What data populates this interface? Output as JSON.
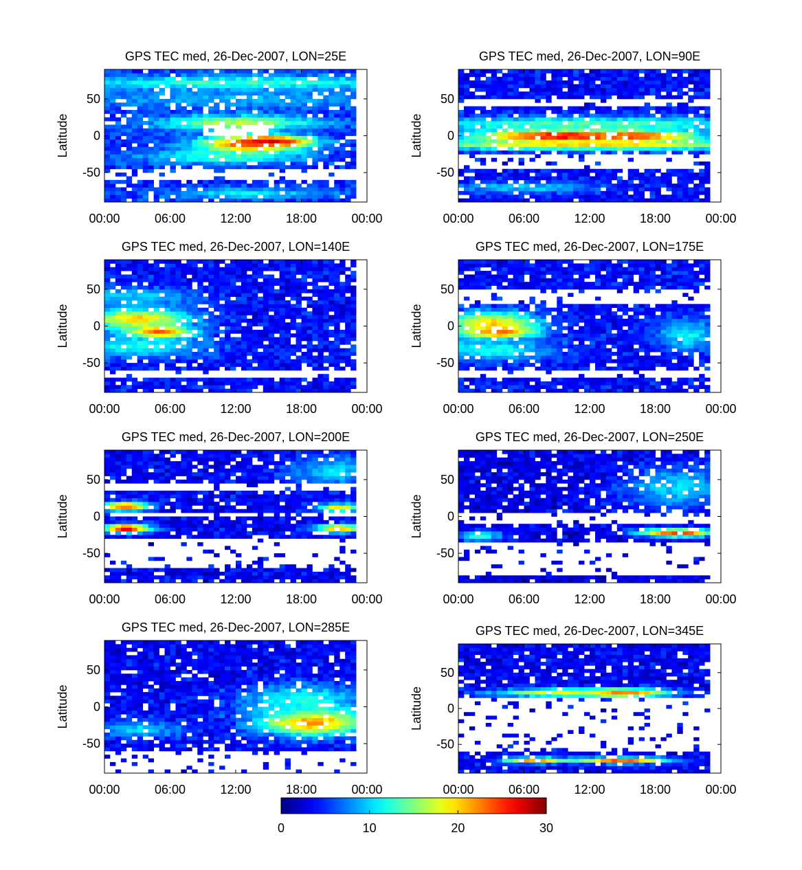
{
  "chart_data": [
    {
      "type": "heatmap",
      "title": "GPS TEC med, 26-Dec-2007, LON=25E",
      "ylabel": "Latitude",
      "xlabel": "",
      "x_ticks": [
        "00:00",
        "06:00",
        "12:00",
        "18:00",
        "00:00"
      ],
      "y_ticks": [
        "50",
        "0",
        "-50"
      ],
      "xlim_hours": [
        0,
        24
      ],
      "ylim": [
        -90,
        90
      ],
      "data_extent_hours": [
        0,
        23
      ],
      "cmap": "jet",
      "clim": [
        0,
        30
      ],
      "features": [
        {
          "hour": 13,
          "lat": -12,
          "w": 6,
          "h": 18,
          "v": 24
        },
        {
          "hour": 15.5,
          "lat": -8,
          "w": 5,
          "h": 10,
          "v": 27
        },
        {
          "hour": 12,
          "lat": 18,
          "w": 10,
          "h": 14,
          "v": 17
        },
        {
          "hour": 12,
          "lat": 72,
          "w": 24,
          "h": 14,
          "v": 13
        },
        {
          "hour": 12,
          "lat": 50,
          "w": 24,
          "h": 18,
          "v": 9
        },
        {
          "hour": 11,
          "lat": -28,
          "w": 10,
          "h": 14,
          "v": 13
        },
        {
          "hour": 13,
          "lat": -78,
          "w": 10,
          "h": 10,
          "v": 11
        }
      ],
      "base": 5,
      "gaps": [
        {
          "h0": 0,
          "h1": 23,
          "l0": -62,
          "l1": -46
        },
        {
          "h0": 9,
          "h1": 15,
          "l0": 0,
          "l1": 14
        }
      ]
    },
    {
      "type": "heatmap",
      "title": "GPS TEC med, 26-Dec-2007, LON=90E",
      "ylabel": "Latitude",
      "xlabel": "",
      "x_ticks": [
        "00:00",
        "06:00",
        "12:00",
        "18:00",
        "00:00"
      ],
      "y_ticks": [
        "50",
        "0",
        "-50"
      ],
      "xlim_hours": [
        0,
        24
      ],
      "ylim": [
        -90,
        90
      ],
      "data_extent_hours": [
        0,
        23
      ],
      "cmap": "jet",
      "clim": [
        0,
        30
      ],
      "features": [
        {
          "hour": 9,
          "lat": 0,
          "w": 10,
          "h": 12,
          "v": 29
        },
        {
          "hour": 16,
          "lat": 0,
          "w": 8,
          "h": 10,
          "v": 26
        },
        {
          "hour": 12,
          "lat": 16,
          "w": 24,
          "h": 14,
          "v": 14
        },
        {
          "hour": 12,
          "lat": -12,
          "w": 24,
          "h": 10,
          "v": 20
        },
        {
          "hour": 6,
          "lat": -70,
          "w": 10,
          "h": 10,
          "v": 10
        }
      ],
      "base": 4,
      "gaps": [
        {
          "h0": 0,
          "h1": 23,
          "l0": -44,
          "l1": -26
        },
        {
          "h0": 0,
          "h1": 23,
          "l0": 40,
          "l1": 52
        }
      ]
    },
    {
      "type": "heatmap",
      "title": "GPS TEC med, 26-Dec-2007, LON=140E",
      "ylabel": "Latitude",
      "xlabel": "",
      "x_ticks": [
        "00:00",
        "06:00",
        "12:00",
        "18:00",
        "00:00"
      ],
      "y_ticks": [
        "50",
        "0",
        "-50"
      ],
      "xlim_hours": [
        0,
        24
      ],
      "ylim": [
        -90,
        90
      ],
      "data_extent_hours": [
        0,
        23
      ],
      "cmap": "jet",
      "clim": [
        0,
        30
      ],
      "features": [
        {
          "hour": 5,
          "lat": -8,
          "w": 4,
          "h": 12,
          "v": 26
        },
        {
          "hour": 3,
          "lat": 10,
          "w": 7,
          "h": 20,
          "v": 20
        },
        {
          "hour": 3,
          "lat": -28,
          "w": 9,
          "h": 20,
          "v": 12
        },
        {
          "hour": 3,
          "lat": 40,
          "w": 8,
          "h": 18,
          "v": 10
        }
      ],
      "base": 4,
      "gaps": [
        {
          "h0": 0,
          "h1": 23,
          "l0": -70,
          "l1": -60
        }
      ]
    },
    {
      "type": "heatmap",
      "title": "GPS TEC med, 26-Dec-2007, LON=175E",
      "ylabel": "Latitude",
      "xlabel": "",
      "x_ticks": [
        "00:00",
        "06:00",
        "12:00",
        "18:00",
        "00:00"
      ],
      "y_ticks": [
        "50",
        "0",
        "-50"
      ],
      "xlim_hours": [
        0,
        24
      ],
      "ylim": [
        -90,
        90
      ],
      "data_extent_hours": [
        0,
        23
      ],
      "cmap": "jet",
      "clim": [
        0,
        30
      ],
      "features": [
        {
          "hour": 3.5,
          "lat": -8,
          "w": 4,
          "h": 10,
          "v": 30
        },
        {
          "hour": 3,
          "lat": 4,
          "w": 6,
          "h": 22,
          "v": 20
        },
        {
          "hour": 3,
          "lat": -32,
          "w": 8,
          "h": 20,
          "v": 12
        },
        {
          "hour": 21,
          "lat": -12,
          "w": 4,
          "h": 30,
          "v": 11
        }
      ],
      "base": 4,
      "gaps": [
        {
          "h0": 0,
          "h1": 23,
          "l0": 30,
          "l1": 52
        },
        {
          "h0": 0,
          "h1": 23,
          "l0": -72,
          "l1": -62
        }
      ]
    },
    {
      "type": "heatmap",
      "title": "GPS TEC med, 26-Dec-2007, LON=200E",
      "ylabel": "Latitude",
      "xlabel": "",
      "x_ticks": [
        "00:00",
        "06:00",
        "12:00",
        "18:00",
        "00:00"
      ],
      "y_ticks": [
        "50",
        "0",
        "-50"
      ],
      "xlim_hours": [
        0,
        24
      ],
      "ylim": [
        -90,
        90
      ],
      "data_extent_hours": [
        0,
        23
      ],
      "cmap": "jet",
      "clim": [
        0,
        30
      ],
      "features": [
        {
          "hour": 2,
          "lat": -16,
          "w": 3,
          "h": 8,
          "v": 28
        },
        {
          "hour": 2,
          "lat": 14,
          "w": 3,
          "h": 8,
          "v": 25
        },
        {
          "hour": 21.5,
          "lat": -16,
          "w": 3,
          "h": 8,
          "v": 22
        },
        {
          "hour": 21.5,
          "lat": 12,
          "w": 3,
          "h": 8,
          "v": 19
        },
        {
          "hour": 21,
          "lat": 62,
          "w": 6,
          "h": 30,
          "v": 10
        }
      ],
      "base": 3.5,
      "gaps": [
        {
          "h0": 0,
          "h1": 23,
          "l0": -2,
          "l1": 6
        },
        {
          "h0": 0,
          "h1": 23,
          "l0": 36,
          "l1": 44
        },
        {
          "h0": 0,
          "h1": 23,
          "l0": -70,
          "l1": -30
        }
      ]
    },
    {
      "type": "heatmap",
      "title": "GPS TEC med, 26-Dec-2007, LON=250E",
      "ylabel": "Latitude",
      "xlabel": "",
      "x_ticks": [
        "00:00",
        "06:00",
        "12:00",
        "18:00",
        "00:00"
      ],
      "y_ticks": [
        "50",
        "0",
        "-50"
      ],
      "xlim_hours": [
        0,
        24
      ],
      "ylim": [
        -90,
        90
      ],
      "data_extent_hours": [
        0,
        23
      ],
      "cmap": "jet",
      "clim": [
        0,
        30
      ],
      "features": [
        {
          "hour": 20,
          "lat": -22,
          "w": 5,
          "h": 8,
          "v": 25
        },
        {
          "hour": 20,
          "lat": 40,
          "w": 7,
          "h": 40,
          "v": 10
        },
        {
          "hour": 2,
          "lat": -26,
          "w": 3,
          "h": 10,
          "v": 12
        }
      ],
      "base": 3,
      "gaps": [
        {
          "h0": 0,
          "h1": 23,
          "l0": -12,
          "l1": 6
        },
        {
          "h0": 0,
          "h1": 23,
          "l0": -80,
          "l1": -36
        }
      ]
    },
    {
      "type": "heatmap",
      "title": "GPS TEC med, 26-Dec-2007, LON=285E",
      "ylabel": "Latitude",
      "xlabel": "",
      "x_ticks": [
        "00:00",
        "06:00",
        "12:00",
        "18:00",
        "00:00"
      ],
      "y_ticks": [
        "50",
        "0",
        "-50"
      ],
      "xlim_hours": [
        0,
        24
      ],
      "ylim": [
        -90,
        90
      ],
      "data_extent_hours": [
        0,
        23
      ],
      "cmap": "jet",
      "clim": [
        0,
        30
      ],
      "features": [
        {
          "hour": 19,
          "lat": -20,
          "w": 7,
          "h": 26,
          "v": 23
        },
        {
          "hour": 18,
          "lat": 10,
          "w": 8,
          "h": 30,
          "v": 12
        },
        {
          "hour": 3,
          "lat": -30,
          "w": 6,
          "h": 16,
          "v": 10
        }
      ],
      "base": 3.5,
      "gaps": [
        {
          "h0": 0,
          "h1": 23,
          "l0": -88,
          "l1": -60
        }
      ]
    },
    {
      "type": "heatmap",
      "title": "GPS TEC med, 26-Dec-2007, LON=345E",
      "ylabel": "Latitude",
      "xlabel": "",
      "x_ticks": [
        "00:00",
        "06:00",
        "12:00",
        "18:00",
        "00:00"
      ],
      "y_ticks": [
        "50",
        "0",
        "-50"
      ],
      "xlim_hours": [
        0,
        24
      ],
      "ylim": [
        -90,
        90
      ],
      "data_extent_hours": [
        0,
        23
      ],
      "cmap": "jet",
      "clim": [
        0,
        30
      ],
      "features": [
        {
          "hour": 15,
          "lat": 22,
          "w": 6,
          "h": 8,
          "v": 25
        },
        {
          "hour": 9,
          "lat": 22,
          "w": 8,
          "h": 8,
          "v": 18
        },
        {
          "hour": 15,
          "lat": -72,
          "w": 6,
          "h": 6,
          "v": 24
        },
        {
          "hour": 7,
          "lat": -72,
          "w": 4,
          "h": 6,
          "v": 22
        }
      ],
      "base": 3.5,
      "gaps": [
        {
          "h0": 0,
          "h1": 23,
          "l0": -60,
          "l1": 16
        }
      ]
    }
  ],
  "colorbar": {
    "ticks": [
      "0",
      "10",
      "20",
      "30"
    ],
    "min": 0,
    "max": 30
  }
}
